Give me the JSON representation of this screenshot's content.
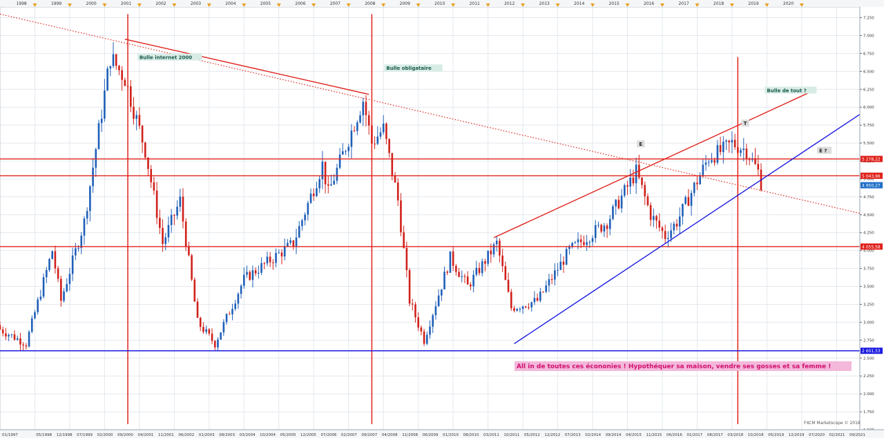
{
  "chart_data": {
    "type": "candlestick",
    "title": "",
    "xlabel": "",
    "ylabel": "",
    "ylim": [
      1500,
      7400
    ],
    "xlim": [
      "1997-01",
      "2021-09"
    ],
    "grid": true,
    "top_year_labels": [
      "1998",
      "1999",
      "2000",
      "2001",
      "2002",
      "2003",
      "2004",
      "2005",
      "2006",
      "2007",
      "2008",
      "2009",
      "2010",
      "2011",
      "2012",
      "2013",
      "2014",
      "2015",
      "2016",
      "2017",
      "2018",
      "2019",
      "2020"
    ],
    "bottom_date_labels": [
      "01/1997",
      "05/1998",
      "12/1998",
      "07/1999",
      "02/2000",
      "09/2000",
      "04/2001",
      "11/2001",
      "06/2002",
      "01/2003",
      "08/2003",
      "03/2004",
      "10/2004",
      "05/2005",
      "12/2005",
      "07/2006",
      "02/2007",
      "09/2007",
      "04/2008",
      "11/2008",
      "06/2009",
      "01/2010",
      "08/2010",
      "03/2011",
      "10/2011",
      "05/2012",
      "12/2012",
      "07/2013",
      "02/2014",
      "09/2014",
      "04/2015",
      "11/2015",
      "06/2016",
      "01/2017",
      "08/2017",
      "03/2018",
      "10/2018",
      "05/2019",
      "12/2019",
      "07/2020",
      "02/2021",
      "09/2021"
    ],
    "y_tick_labels": [
      "1.500",
      "1.750",
      "2.000",
      "2.250",
      "2.500",
      "2.750",
      "3.000",
      "3.250",
      "3.500",
      "3.750",
      "4.000",
      "4.250",
      "4.500",
      "4.750",
      "5.000",
      "5.250",
      "5.500",
      "5.750",
      "6.000",
      "6.250",
      "6.500",
      "6.750",
      "7.000",
      "7.250"
    ],
    "y_ticks": [
      1500,
      1750,
      2000,
      2250,
      2500,
      2750,
      3000,
      3250,
      3500,
      3750,
      4000,
      4250,
      4500,
      4750,
      5000,
      5250,
      5500,
      5750,
      6000,
      6250,
      6500,
      6750,
      7000,
      7250
    ],
    "key_points": [
      {
        "date": "1997-01",
        "close": 2900
      },
      {
        "date": "1997-10",
        "close": 2700
      },
      {
        "date": "1998-07",
        "close": 4000
      },
      {
        "date": "1998-10",
        "close": 3300
      },
      {
        "date": "1999-06",
        "close": 4400
      },
      {
        "date": "2000-03",
        "close": 6700
      },
      {
        "date": "2000-08",
        "close": 6400
      },
      {
        "date": "2001-03",
        "close": 5400
      },
      {
        "date": "2001-09",
        "close": 4100
      },
      {
        "date": "2002-03",
        "close": 4700
      },
      {
        "date": "2002-09",
        "close": 3000
      },
      {
        "date": "2003-03",
        "close": 2700
      },
      {
        "date": "2004-01",
        "close": 3600
      },
      {
        "date": "2005-06",
        "close": 4100
      },
      {
        "date": "2006-04",
        "close": 5200
      },
      {
        "date": "2006-06",
        "close": 4800
      },
      {
        "date": "2007-06",
        "close": 6100
      },
      {
        "date": "2007-09",
        "close": 5500
      },
      {
        "date": "2008-01",
        "close": 5700
      },
      {
        "date": "2008-06",
        "close": 4700
      },
      {
        "date": "2008-10",
        "close": 3300
      },
      {
        "date": "2009-03",
        "close": 2750
      },
      {
        "date": "2009-12",
        "close": 3900
      },
      {
        "date": "2010-06",
        "close": 3500
      },
      {
        "date": "2011-04",
        "close": 4100
      },
      {
        "date": "2011-09",
        "close": 3200
      },
      {
        "date": "2012-06",
        "close": 3300
      },
      {
        "date": "2013-05",
        "close": 4000
      },
      {
        "date": "2014-06",
        "close": 4400
      },
      {
        "date": "2015-04",
        "close": 5100
      },
      {
        "date": "2015-09",
        "close": 4500
      },
      {
        "date": "2016-02",
        "close": 4200
      },
      {
        "date": "2016-06",
        "close": 4400
      },
      {
        "date": "2017-05",
        "close": 5300
      },
      {
        "date": "2017-10",
        "close": 5400
      },
      {
        "date": "2018-01",
        "close": 5500
      },
      {
        "date": "2018-06",
        "close": 5400
      },
      {
        "date": "2018-10",
        "close": 5100
      },
      {
        "date": "2018-11",
        "close": 4950
      }
    ],
    "horizontal_lines": [
      {
        "value": 5278.22,
        "label": "5 278,22",
        "color": "#e0201a"
      },
      {
        "value": 5043.96,
        "label": "5 043,96",
        "color": "#e0201a"
      },
      {
        "value": 4055.58,
        "label": "4 055,58",
        "color": "#e0201a"
      },
      {
        "value": 2601.53,
        "label": "2 601,53",
        "color": "#1a1ae0"
      }
    ],
    "last_price": {
      "value": 4950.27,
      "label": "4 950,27",
      "color": "#1e6fc8"
    },
    "vertical_lines": [
      {
        "date": "2000-09",
        "color": "#e0201a"
      },
      {
        "date": "2007-09",
        "color": "#e0201a"
      },
      {
        "date": "2018-03",
        "color": "#e0201a"
      }
    ],
    "trend_lines": [
      {
        "from": {
          "date": "1997-01",
          "value": 7300
        },
        "to": {
          "date": "2021-09",
          "value": 4520
        },
        "color": "#e0201a",
        "style": "dotted"
      },
      {
        "from": {
          "date": "2000-08",
          "value": 6950
        },
        "to": {
          "date": "2007-08",
          "value": 6180
        },
        "color": "#e0201a",
        "style": "solid"
      },
      {
        "from": {
          "date": "2011-03",
          "value": 4180
        },
        "to": {
          "date": "2020-06",
          "value": 6250
        },
        "color": "#e0201a",
        "style": "solid"
      },
      {
        "from": {
          "date": "2011-10",
          "value": 2700
        },
        "to": {
          "date": "2021-09",
          "value": 5900
        },
        "color": "#1a1ae0",
        "style": "solid"
      }
    ],
    "annotations": [
      {
        "text": "Bulle internet 2000",
        "date": "2001-01",
        "value": 6680
      },
      {
        "text": "Bulle obligataire",
        "date": "2008-02",
        "value": 6530
      },
      {
        "text": "Bulle de tout ?",
        "date": "2019-01",
        "value": 6220
      }
    ],
    "wave_labels": [
      {
        "text": "E",
        "date": "2015-05",
        "value": 5470
      },
      {
        "text": "T",
        "date": "2018-05",
        "value": 5760
      },
      {
        "text": "E ?",
        "date": "2020-07",
        "value": 5380
      }
    ],
    "footer_note": "All in de toutes ces écononies ! Hypothéquer sa maison, vendre ses gosses et sa femme !",
    "watermark": "FXCM Marketscope © 2018",
    "colors": {
      "up": "#1e5fb8",
      "down": "#d0201a",
      "grid": "#e3e8ee",
      "axis_bg": "#ffffff",
      "annotation_bg": "#d8ece6",
      "annotation_text": "#1a5a4a",
      "note_bg": "#f3b8da",
      "note_text": "#d0106e",
      "top_marker": "#e8a020"
    }
  }
}
